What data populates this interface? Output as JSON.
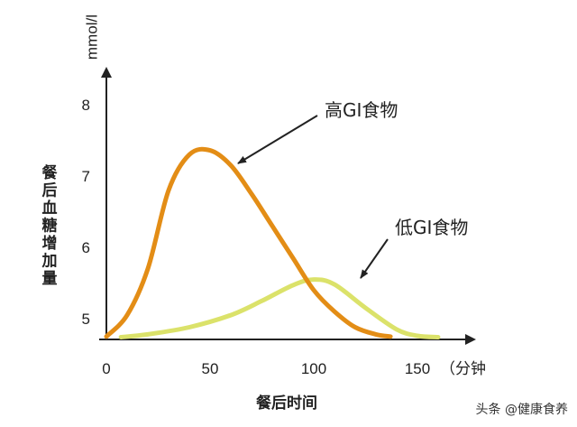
{
  "chart_data": {
    "type": "line",
    "ylabel": "餐后血糖增加量",
    "yunit": "mmol/l",
    "xlabel": "餐后时间",
    "xunit": "（分钟",
    "xlim": [
      0,
      175
    ],
    "ylim": [
      4.7,
      8.5
    ],
    "xticks": [
      0,
      50,
      100,
      150
    ],
    "yticks": [
      5,
      6,
      7,
      8
    ],
    "series": [
      {
        "name": "高GI食物",
        "color": "#e38d16",
        "x": [
          0,
          10,
          20,
          30,
          40,
          50,
          60,
          70,
          80,
          90,
          100,
          110,
          120,
          130,
          137
        ],
        "y": [
          4.75,
          5.05,
          5.7,
          6.8,
          7.3,
          7.36,
          7.15,
          6.75,
          6.3,
          5.85,
          5.4,
          5.1,
          4.88,
          4.78,
          4.75
        ]
      },
      {
        "name": "低GI食物",
        "color": "#dbe26a",
        "x": [
          7,
          20,
          40,
          60,
          75,
          90,
          100,
          110,
          125,
          140,
          150,
          160
        ],
        "y": [
          4.74,
          4.78,
          4.88,
          5.05,
          5.25,
          5.47,
          5.55,
          5.48,
          5.15,
          4.85,
          4.76,
          4.74
        ]
      }
    ],
    "annotations": [
      {
        "text": "高GI食物",
        "target_series": 0
      },
      {
        "text": "低GI食物",
        "target_series": 1
      }
    ]
  },
  "watermark": "头条 @健康食养"
}
